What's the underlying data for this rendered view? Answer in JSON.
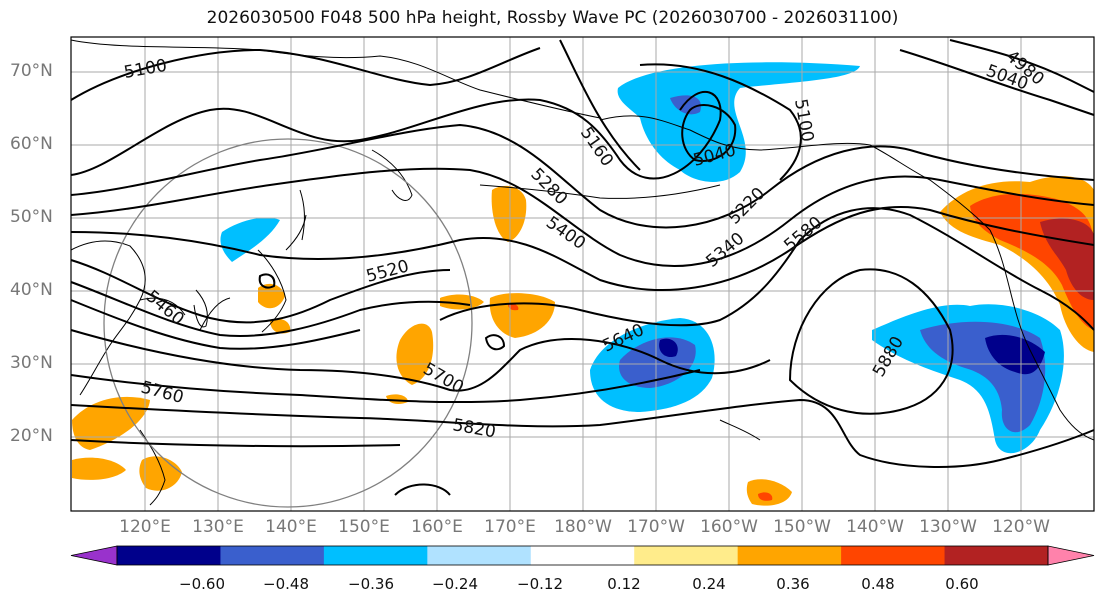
{
  "title": "2026030500 F048 500 hPa height, Rossby Wave PC (2026030700 - 2026031100)",
  "lat_labels": [
    "70°N",
    "60°N",
    "50°N",
    "40°N",
    "30°N",
    "20°N"
  ],
  "lon_labels": [
    "120°E",
    "130°E",
    "140°E",
    "150°E",
    "160°E",
    "170°E",
    "180°W",
    "170°W",
    "160°W",
    "150°W",
    "140°W",
    "130°W",
    "120°W"
  ],
  "colorbar": {
    "ticks": [
      "−0.60",
      "−0.48",
      "−0.36",
      "−0.24",
      "−0.12",
      "0.12",
      "0.24",
      "0.36",
      "0.48",
      "0.60"
    ],
    "colors": [
      "#9932cc",
      "#00008b",
      "#3a5fcd",
      "#00bfff",
      "#b0e2ff",
      "#ffffff",
      "#ffec8b",
      "#ffa500",
      "#ff4500",
      "#b22222",
      "#ff82ab"
    ]
  },
  "contour_labels": [
    "5100",
    "5160",
    "5040",
    "5100",
    "4980",
    "5040",
    "5280",
    "5400",
    "5220",
    "5340",
    "5580",
    "5520",
    "5460",
    "5640",
    "5700",
    "5760",
    "5820",
    "5880"
  ],
  "colors": {
    "contour": "#000000",
    "grid": "#aaaaaa",
    "circle": "#808080"
  }
}
